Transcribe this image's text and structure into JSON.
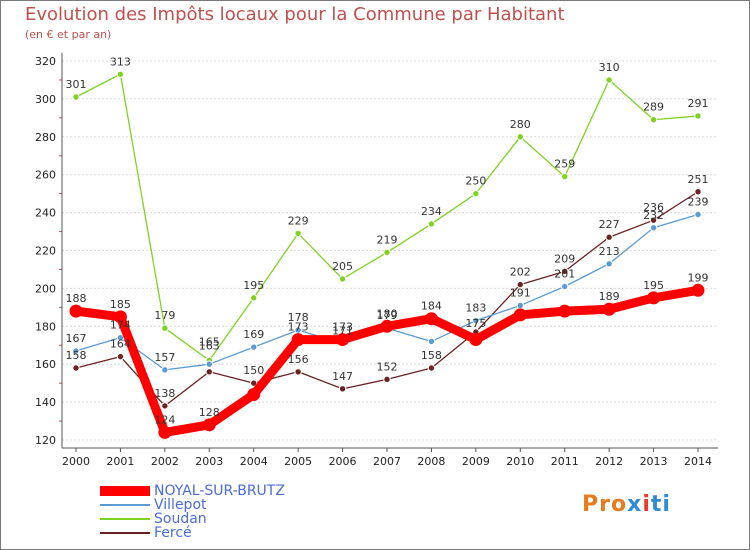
{
  "chart_data": {
    "type": "line",
    "title": "Evolution des Impôts locaux pour la Commune par Habitant",
    "subtitle": "(en € et par an)",
    "x": [
      "2000",
      "2001",
      "2002",
      "2003",
      "2004",
      "2005",
      "2006",
      "2007",
      "2008",
      "2009",
      "2010",
      "2011",
      "2012",
      "2013",
      "2014"
    ],
    "ylim": [
      120,
      320
    ],
    "yticks": [
      120,
      140,
      160,
      180,
      200,
      220,
      240,
      260,
      280,
      300,
      320
    ],
    "series": [
      {
        "name": "NOYAL-SUR-BRUTZ",
        "color": "#ff0000",
        "values": [
          188,
          185,
          124,
          128,
          144,
          173,
          173,
          180,
          184,
          173,
          186,
          188,
          189,
          195,
          199
        ],
        "labels": [
          "188",
          "185",
          "124",
          "128",
          "",
          "",
          "",
          "",
          "184",
          "",
          "",
          "",
          "189",
          "195",
          "199"
        ]
      },
      {
        "name": "Villepot",
        "color": "#5b9bd5",
        "values": [
          167,
          174,
          157,
          160,
          169,
          178,
          171,
          179,
          172,
          183,
          191,
          201,
          213,
          232,
          239
        ],
        "labels": [
          "167",
          "174",
          "157",
          "",
          "169",
          "178",
          "171",
          "179",
          "",
          "183",
          "191",
          "201",
          "213",
          "232",
          "239"
        ]
      },
      {
        "name": "Soudan",
        "color": "#7ed321",
        "values": [
          301,
          313,
          179,
          162,
          195,
          229,
          205,
          219,
          234,
          250,
          280,
          259,
          310,
          289,
          291
        ],
        "labels": [
          "301",
          "313",
          "179",
          "",
          "195",
          "229",
          "205",
          "219",
          "234",
          "250",
          "280",
          "259",
          "310",
          "289",
          "291"
        ]
      },
      {
        "name": "Fercé",
        "color": "#6b2222",
        "values": [
          158,
          164,
          138,
          156,
          150,
          156,
          147,
          152,
          158,
          177,
          202,
          209,
          227,
          236,
          251
        ],
        "labels": [
          "158",
          "164",
          "138",
          "",
          "150",
          "156",
          "147",
          "152",
          "158",
          "",
          "202",
          "209",
          "227",
          "236",
          "251"
        ]
      }
    ],
    "extra_labels": [
      "163",
      "165",
      "173",
      "173",
      "180",
      "175"
    ],
    "xlabel": "",
    "ylabel": ""
  },
  "legend": [
    "NOYAL-SUR-BRUTZ",
    "Villepot",
    "Soudan",
    "Fercé"
  ],
  "logo": {
    "text": "Proxiti"
  }
}
